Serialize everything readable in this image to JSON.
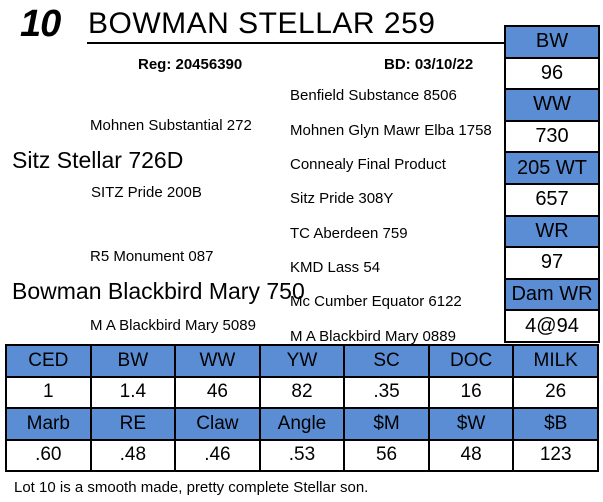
{
  "header": {
    "lot_number": "10",
    "title": "BOWMAN STELLAR 259",
    "reg": "Reg: 20456390",
    "birth_date": "BD: 03/10/22"
  },
  "pedigree": {
    "sire": "Sitz Stellar 726D",
    "sire_sire": "Mohnen Substantial 272",
    "sire_dam": "SITZ Pride 200B",
    "dam": "Bowman Blackbird Mary 750",
    "dam_sire": "R5 Monument 087",
    "dam_dam": "M A Blackbird Mary 5089",
    "third_generation": [
      "Benfield Substance 8506",
      "Mohnen Glyn Mawr Elba 1758",
      "Connealy Final Product",
      "Sitz Pride 308Y",
      "TC Aberdeen 759",
      "KMD Lass 54",
      "Mc Cumber Equator 6122",
      "M A Blackbird Mary 0889"
    ]
  },
  "performance": {
    "entries": [
      {
        "label": "BW",
        "value": "96"
      },
      {
        "label": "WW",
        "value": "730"
      },
      {
        "label": "205 WT",
        "value": "657"
      },
      {
        "label": "WR",
        "value": "97"
      },
      {
        "label": "Dam WR",
        "value": "4@94"
      }
    ]
  },
  "epd": {
    "row1_headers": [
      "CED",
      "BW",
      "WW",
      "YW",
      "SC",
      "DOC",
      "MILK"
    ],
    "row1_values": [
      "1",
      "1.4",
      "46",
      "82",
      ".35",
      "16",
      "26"
    ],
    "row2_headers": [
      "Marb",
      "RE",
      "Claw",
      "Angle",
      "$M",
      "$W",
      "$B"
    ],
    "row2_values": [
      ".60",
      ".48",
      ".46",
      ".53",
      "56",
      "48",
      "123"
    ]
  },
  "footnote": "Lot 10 is a smooth made, pretty complete Stellar son.",
  "colors": {
    "accent_blue": "#5A8DD3",
    "border_black": "#000000"
  }
}
